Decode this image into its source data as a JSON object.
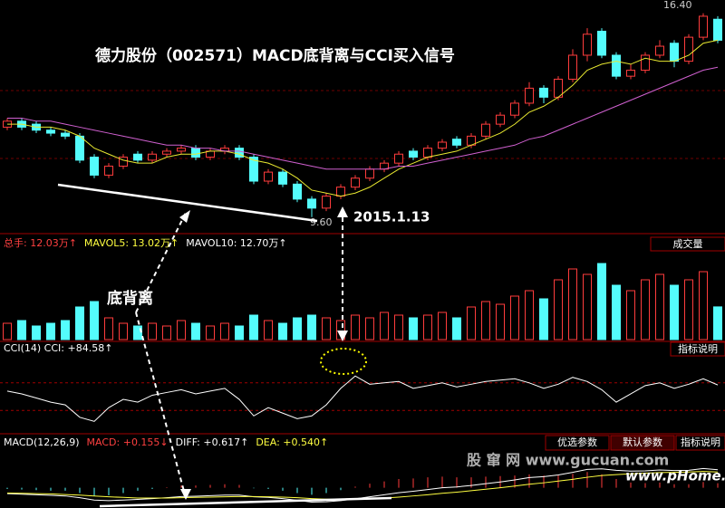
{
  "chart_data": {
    "type": "candlestick",
    "title": "德力股份（002571）MACD底背离与CCI买入信号",
    "annotations": {
      "high_label": "16.40",
      "low_label": "9.60",
      "date_label": "2015.1.13",
      "divergence_label": "底背离"
    },
    "price": {
      "ylim": [
        9.2,
        16.6
      ],
      "up_color": "#ff3c3c",
      "down_color": "#54fcfc",
      "open": [
        12.6,
        12.8,
        12.7,
        12.5,
        12.4,
        12.3,
        11.6,
        11.0,
        11.3,
        11.7,
        11.5,
        11.7,
        11.8,
        11.9,
        11.6,
        11.8,
        11.9,
        11.6,
        10.8,
        11.1,
        10.7,
        10.2,
        9.9,
        10.3,
        10.6,
        10.9,
        11.2,
        11.4,
        11.8,
        11.6,
        11.9,
        12.2,
        12.0,
        12.3,
        12.7,
        13.0,
        13.4,
        13.9,
        13.6,
        14.2,
        15.0,
        15.8,
        15.0,
        14.3,
        14.5,
        15.0,
        15.4,
        14.8,
        15.6,
        16.2
      ],
      "high": [
        12.9,
        12.9,
        12.8,
        12.6,
        12.5,
        12.4,
        11.7,
        11.4,
        11.7,
        11.8,
        11.8,
        11.9,
        12.0,
        12.0,
        11.9,
        12.0,
        12.0,
        11.7,
        11.2,
        11.2,
        10.8,
        10.3,
        10.4,
        10.7,
        11.0,
        11.3,
        11.5,
        11.8,
        11.9,
        12.0,
        12.2,
        12.3,
        12.4,
        12.8,
        13.1,
        13.5,
        14.1,
        14.0,
        14.3,
        15.2,
        15.9,
        15.9,
        15.1,
        14.7,
        15.1,
        15.5,
        15.5,
        15.7,
        16.4,
        16.3
      ],
      "low": [
        12.5,
        12.5,
        12.4,
        12.3,
        12.2,
        11.4,
        10.9,
        10.9,
        11.2,
        11.4,
        11.4,
        11.6,
        11.7,
        11.5,
        11.5,
        11.7,
        11.5,
        10.7,
        10.7,
        10.6,
        10.1,
        9.6,
        9.8,
        10.2,
        10.5,
        10.8,
        11.1,
        11.3,
        11.5,
        11.5,
        11.8,
        11.9,
        11.9,
        12.2,
        12.6,
        12.9,
        13.3,
        13.4,
        13.5,
        14.1,
        14.8,
        14.9,
        14.2,
        14.2,
        14.4,
        14.9,
        14.6,
        14.7,
        15.5,
        15.4
      ],
      "close": [
        12.8,
        12.6,
        12.5,
        12.4,
        12.3,
        11.5,
        11.0,
        11.3,
        11.6,
        11.5,
        11.7,
        11.8,
        11.9,
        11.6,
        11.8,
        11.9,
        11.6,
        10.8,
        11.1,
        10.7,
        10.2,
        9.9,
        10.3,
        10.6,
        10.9,
        11.2,
        11.4,
        11.7,
        11.6,
        11.9,
        12.1,
        12.0,
        12.3,
        12.7,
        13.0,
        13.4,
        13.9,
        13.6,
        14.2,
        15.0,
        15.7,
        15.0,
        14.3,
        14.5,
        15.0,
        15.3,
        14.8,
        15.6,
        16.3,
        15.5
      ],
      "lines": [
        {
          "color": "#e8e830",
          "values": [
            12.7,
            12.7,
            12.6,
            12.6,
            12.5,
            12.3,
            11.9,
            11.7,
            11.5,
            11.4,
            11.4,
            11.6,
            11.7,
            11.7,
            11.8,
            11.8,
            11.7,
            11.5,
            11.4,
            11.2,
            10.9,
            10.5,
            10.4,
            10.3,
            10.4,
            10.6,
            10.9,
            11.2,
            11.4,
            11.6,
            11.7,
            11.8,
            12.0,
            12.2,
            12.4,
            12.7,
            13.1,
            13.3,
            13.6,
            14.0,
            14.5,
            14.7,
            14.8,
            14.7,
            14.9,
            14.8,
            14.8,
            15.0,
            15.4,
            15.5
          ]
        },
        {
          "color": "#d060d0",
          "values": [
            12.9,
            12.9,
            12.8,
            12.8,
            12.7,
            12.6,
            12.5,
            12.4,
            12.3,
            12.2,
            12.1,
            12.0,
            12.0,
            11.9,
            11.9,
            11.8,
            11.8,
            11.7,
            11.6,
            11.5,
            11.4,
            11.3,
            11.2,
            11.2,
            11.2,
            11.2,
            11.2,
            11.3,
            11.3,
            11.4,
            11.5,
            11.6,
            11.7,
            11.8,
            11.9,
            12.0,
            12.2,
            12.3,
            12.5,
            12.7,
            12.9,
            13.1,
            13.3,
            13.5,
            13.7,
            13.9,
            14.1,
            14.3,
            14.5,
            14.6
          ]
        }
      ]
    },
    "volume": {
      "header": [
        {
          "text": "总手: 12.03万↑",
          "color": "#ff4040"
        },
        {
          "text": "MAVOL5: 13.02万↑",
          "color": "#ffff40"
        },
        {
          "text": "MAVOL10: 12.70万↑",
          "color": "#ffffff"
        }
      ],
      "button": "成交量",
      "ylim": [
        0,
        30
      ],
      "values": [
        6,
        7,
        5,
        6,
        7,
        12,
        14,
        8,
        6,
        5,
        6,
        5,
        7,
        6,
        5,
        6,
        5,
        9,
        7,
        6,
        8,
        9,
        8,
        7,
        9,
        8,
        10,
        9,
        8,
        9,
        10,
        8,
        12,
        14,
        13,
        16,
        18,
        15,
        22,
        26,
        24,
        28,
        20,
        18,
        22,
        24,
        20,
        22,
        25,
        12.03
      ]
    },
    "cci": {
      "header": [
        {
          "text": "CCI(14) CCI: +84.58↑",
          "color": "#ffffff"
        }
      ],
      "button": "指标说明",
      "ylim": [
        -250,
        250
      ],
      "ref_lines": [
        100,
        -100
      ],
      "color": "#ffffff",
      "values": [
        40,
        20,
        -10,
        -40,
        -60,
        -150,
        -180,
        -80,
        -20,
        -40,
        10,
        30,
        50,
        20,
        40,
        60,
        -20,
        -140,
        -80,
        -120,
        -160,
        -140,
        -60,
        60,
        150,
        90,
        100,
        110,
        60,
        80,
        100,
        70,
        90,
        110,
        120,
        130,
        100,
        60,
        90,
        140,
        110,
        50,
        -40,
        20,
        80,
        100,
        60,
        90,
        130,
        84.58
      ]
    },
    "macd": {
      "header": [
        {
          "text": "MACD(12,26,9)",
          "color": "#ffffff"
        },
        {
          "text": "MACD: +0.155↓",
          "color": "#ff4040"
        },
        {
          "text": "DIFF: +0.617↑",
          "color": "#ffffff"
        },
        {
          "text": "DEA: +0.540↑",
          "color": "#ffff40"
        }
      ],
      "buttons": [
        "优选参数",
        "默认参数",
        "指标说明"
      ],
      "ylim": [
        -0.6,
        1.2
      ],
      "diff": [
        -0.2,
        -0.22,
        -0.24,
        -0.26,
        -0.28,
        -0.34,
        -0.42,
        -0.44,
        -0.42,
        -0.4,
        -0.37,
        -0.34,
        -0.3,
        -0.29,
        -0.27,
        -0.25,
        -0.25,
        -0.31,
        -0.33,
        -0.37,
        -0.43,
        -0.49,
        -0.48,
        -0.44,
        -0.38,
        -0.31,
        -0.24,
        -0.17,
        -0.12,
        -0.06,
        0.0,
        0.03,
        0.08,
        0.14,
        0.2,
        0.27,
        0.35,
        0.38,
        0.44,
        0.53,
        0.63,
        0.65,
        0.6,
        0.57,
        0.58,
        0.61,
        0.59,
        0.6,
        0.66,
        0.617
      ],
      "dea": [
        -0.18,
        -0.19,
        -0.2,
        -0.21,
        -0.23,
        -0.25,
        -0.28,
        -0.31,
        -0.33,
        -0.35,
        -0.35,
        -0.35,
        -0.34,
        -0.33,
        -0.32,
        -0.31,
        -0.3,
        -0.3,
        -0.31,
        -0.32,
        -0.34,
        -0.37,
        -0.39,
        -0.4,
        -0.4,
        -0.38,
        -0.35,
        -0.32,
        -0.28,
        -0.24,
        -0.19,
        -0.15,
        -0.1,
        -0.05,
        0.0,
        0.06,
        0.12,
        0.17,
        0.23,
        0.29,
        0.36,
        0.42,
        0.45,
        0.48,
        0.5,
        0.52,
        0.53,
        0.54,
        0.56,
        0.54
      ],
      "hist": [
        -0.04,
        -0.06,
        -0.08,
        -0.1,
        -0.1,
        -0.18,
        -0.28,
        -0.26,
        -0.18,
        -0.1,
        -0.04,
        0.02,
        0.08,
        0.08,
        0.1,
        0.12,
        0.1,
        -0.02,
        -0.04,
        -0.1,
        -0.18,
        -0.24,
        -0.18,
        -0.08,
        0.04,
        0.14,
        0.22,
        0.3,
        0.32,
        0.36,
        0.38,
        0.36,
        0.36,
        0.38,
        0.4,
        0.42,
        0.46,
        0.42,
        0.42,
        0.48,
        0.54,
        0.46,
        0.3,
        0.18,
        0.16,
        0.18,
        0.12,
        0.12,
        0.2,
        0.155
      ]
    },
    "watermark": [
      "股 窜 网 www.gucuan.com",
      "www.pHome.NET"
    ]
  }
}
